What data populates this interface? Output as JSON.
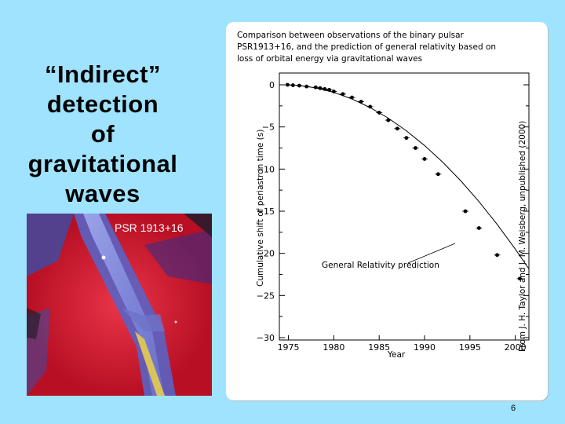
{
  "slide": {
    "title_lines": [
      "“Indirect”",
      "detection",
      "of",
      "gravitational",
      "waves"
    ],
    "image_label": "PSR 1913+16",
    "page_number": "6",
    "background_color": "#9fe3ff"
  },
  "figure": {
    "caption_lines": [
      "Comparison  between  observations  of  the  binary  pulsar",
      "PSR1913+16,  and the prediction of general relativity based on",
      "loss of orbital energy via gravitational waves"
    ],
    "credit": "From  J. H. Taylor and J. M. Weisberg,  unpublished (2000)",
    "prediction_label": "General Relativity prediction"
  },
  "chart_data": {
    "type": "scatter",
    "xlabel": "Year",
    "ylabel": "Cumulative shift of periastron time (s)",
    "xlim": [
      1974,
      2001.5
    ],
    "ylim": [
      -30,
      1
    ],
    "x_ticks": [
      1975,
      1980,
      1985,
      1990,
      1995,
      2000
    ],
    "y_ticks": [
      0,
      -5,
      -10,
      -15,
      -20,
      -25,
      -30
    ],
    "series": [
      {
        "name": "General Relativity prediction",
        "kind": "curve",
        "x": [
          1974.8,
          1976,
          1978,
          1980,
          1982,
          1984,
          1986,
          1988,
          1990,
          1992,
          1994,
          1996,
          1998,
          2000,
          2001.5
        ],
        "y": [
          0,
          -0.06,
          -0.36,
          -0.9,
          -1.68,
          -2.7,
          -3.96,
          -5.46,
          -7.2,
          -9.18,
          -11.4,
          -13.86,
          -16.56,
          -19.5,
          -21.85
        ]
      },
      {
        "name": "Observations",
        "kind": "points",
        "x": [
          1974.9,
          1975.5,
          1976.2,
          1977.0,
          1978.0,
          1978.5,
          1979.0,
          1979.5,
          1980.0,
          1981.0,
          1982.0,
          1983.0,
          1984.0,
          1985.0,
          1986.0,
          1987.0,
          1988.0,
          1989.0,
          1990.0,
          1991.5,
          1994.5,
          1996.0,
          1998.0,
          2000.5
        ],
        "y": [
          0.0,
          -0.05,
          -0.1,
          -0.2,
          -0.3,
          -0.4,
          -0.5,
          -0.6,
          -0.8,
          -1.1,
          -1.5,
          -2.0,
          -2.6,
          -3.3,
          -4.2,
          -5.2,
          -6.3,
          -7.5,
          -8.8,
          -10.6,
          -15.0,
          -17.0,
          -20.2,
          -23.0
        ]
      }
    ],
    "grid": false,
    "legend": "annotation"
  }
}
